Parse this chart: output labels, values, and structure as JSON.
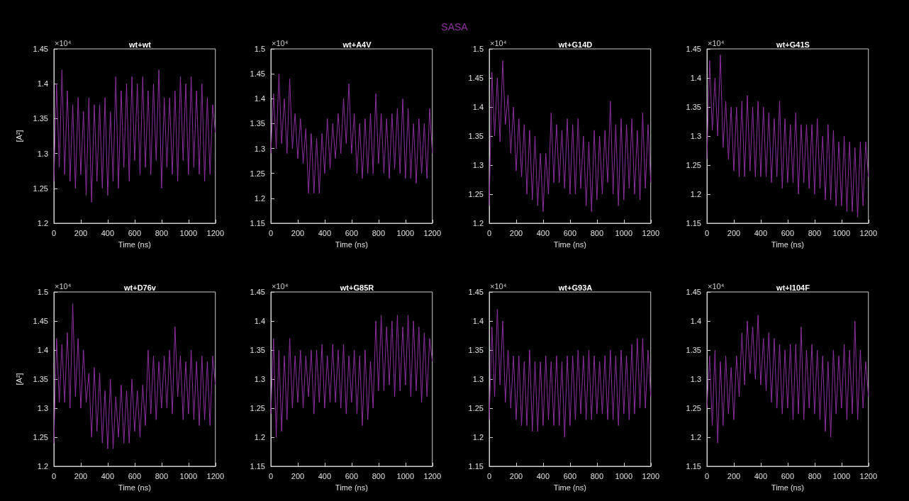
{
  "chart_data": [
    {
      "type": "line",
      "title": "wt+wt",
      "xlabel": "Time (ns)",
      "ylabel": "[A²]",
      "annotations": [
        "×10⁴",
        "SASA"
      ],
      "color": "#8e30a0",
      "x": [
        0,
        20,
        40,
        60,
        80,
        100,
        120,
        140,
        160,
        180,
        200,
        220,
        240,
        260,
        280,
        300,
        320,
        340,
        360,
        380,
        400,
        420,
        440,
        460,
        480,
        500,
        520,
        540,
        560,
        580,
        600,
        620,
        640,
        660,
        680,
        700,
        720,
        740,
        760,
        780,
        800,
        820,
        840,
        860,
        880,
        900,
        920,
        940,
        960,
        980,
        1000,
        1020,
        1040,
        1060,
        1080,
        1100,
        1120,
        1140,
        1160,
        1180,
        1200
      ],
      "values": [
        1.26,
        1.4,
        1.28,
        1.42,
        1.27,
        1.39,
        1.26,
        1.37,
        1.25,
        1.38,
        1.27,
        1.36,
        1.24,
        1.38,
        1.23,
        1.37,
        1.26,
        1.37,
        1.25,
        1.38,
        1.24,
        1.36,
        1.26,
        1.41,
        1.25,
        1.39,
        1.28,
        1.4,
        1.26,
        1.41,
        1.29,
        1.4,
        1.27,
        1.41,
        1.28,
        1.39,
        1.27,
        1.4,
        1.29,
        1.42,
        1.25,
        1.38,
        1.28,
        1.38,
        1.27,
        1.39,
        1.26,
        1.41,
        1.29,
        1.4,
        1.27,
        1.41,
        1.28,
        1.39,
        1.27,
        1.4,
        1.26,
        1.38,
        1.27,
        1.37,
        1.33
      ],
      "xlim": [
        0,
        1200
      ],
      "xticks": [
        0,
        200,
        400,
        600,
        800,
        1000,
        1200
      ],
      "ylim": [
        1.2,
        1.45
      ],
      "yticks": [
        1.2,
        1.25,
        1.3,
        1.35,
        1.4,
        1.45
      ]
    },
    {
      "type": "line",
      "title": "wt+A4V",
      "xlabel": "Time (ns)",
      "annotations": [
        "×10⁴"
      ],
      "color": "#8e30a0",
      "x": [
        0,
        20,
        40,
        60,
        80,
        100,
        120,
        140,
        160,
        180,
        200,
        220,
        240,
        260,
        280,
        300,
        320,
        340,
        360,
        380,
        400,
        420,
        440,
        460,
        480,
        500,
        520,
        540,
        560,
        580,
        600,
        620,
        640,
        660,
        680,
        700,
        720,
        740,
        760,
        780,
        800,
        820,
        840,
        860,
        880,
        900,
        920,
        940,
        960,
        980,
        1000,
        1020,
        1040,
        1060,
        1080,
        1100,
        1120,
        1140,
        1160,
        1180,
        1200
      ],
      "values": [
        1.29,
        1.41,
        1.3,
        1.45,
        1.31,
        1.4,
        1.29,
        1.44,
        1.3,
        1.37,
        1.28,
        1.36,
        1.27,
        1.34,
        1.21,
        1.33,
        1.21,
        1.32,
        1.21,
        1.33,
        1.25,
        1.36,
        1.26,
        1.35,
        1.28,
        1.37,
        1.29,
        1.4,
        1.31,
        1.43,
        1.29,
        1.37,
        1.25,
        1.35,
        1.24,
        1.36,
        1.25,
        1.37,
        1.25,
        1.41,
        1.27,
        1.37,
        1.25,
        1.36,
        1.24,
        1.37,
        1.26,
        1.38,
        1.25,
        1.4,
        1.24,
        1.38,
        1.24,
        1.35,
        1.23,
        1.36,
        1.25,
        1.35,
        1.24,
        1.38,
        1.29
      ],
      "xlim": [
        0,
        1200
      ],
      "xticks": [
        0,
        200,
        400,
        600,
        800,
        1000,
        1200
      ],
      "ylim": [
        1.15,
        1.5
      ],
      "yticks": [
        1.15,
        1.2,
        1.25,
        1.3,
        1.35,
        1.4,
        1.45,
        1.5
      ]
    },
    {
      "type": "line",
      "title": "wt+G14D",
      "xlabel": "Time (ns)",
      "annotations": [
        "×10⁴"
      ],
      "color": "#8e30a0",
      "x": [
        0,
        20,
        40,
        60,
        80,
        100,
        120,
        140,
        160,
        180,
        200,
        220,
        240,
        260,
        280,
        300,
        320,
        340,
        360,
        380,
        400,
        420,
        440,
        460,
        480,
        500,
        520,
        540,
        560,
        580,
        600,
        620,
        640,
        660,
        680,
        700,
        720,
        740,
        760,
        780,
        800,
        820,
        840,
        860,
        880,
        900,
        920,
        940,
        960,
        980,
        1000,
        1020,
        1040,
        1060,
        1080,
        1100,
        1120,
        1140,
        1160,
        1180,
        1200
      ],
      "values": [
        1.23,
        1.46,
        1.35,
        1.45,
        1.34,
        1.48,
        1.37,
        1.42,
        1.32,
        1.4,
        1.29,
        1.38,
        1.28,
        1.37,
        1.25,
        1.36,
        1.24,
        1.35,
        1.23,
        1.32,
        1.22,
        1.32,
        1.25,
        1.39,
        1.27,
        1.37,
        1.27,
        1.36,
        1.26,
        1.38,
        1.25,
        1.37,
        1.25,
        1.38,
        1.26,
        1.35,
        1.23,
        1.34,
        1.22,
        1.36,
        1.24,
        1.35,
        1.25,
        1.36,
        1.27,
        1.41,
        1.25,
        1.37,
        1.23,
        1.38,
        1.24,
        1.37,
        1.26,
        1.38,
        1.25,
        1.36,
        1.24,
        1.39,
        1.26,
        1.37,
        1.27
      ],
      "xlim": [
        0,
        1200
      ],
      "xticks": [
        0,
        200,
        400,
        600,
        800,
        1000,
        1200
      ],
      "ylim": [
        1.2,
        1.5
      ],
      "yticks": [
        1.2,
        1.25,
        1.3,
        1.35,
        1.4,
        1.45,
        1.5
      ]
    },
    {
      "type": "line",
      "title": "wt+G41S",
      "xlabel": "Time (ns)",
      "annotations": [
        "×10⁴"
      ],
      "color": "#8e30a0",
      "x": [
        0,
        20,
        40,
        60,
        80,
        100,
        120,
        140,
        160,
        180,
        200,
        220,
        240,
        260,
        280,
        300,
        320,
        340,
        360,
        380,
        400,
        420,
        440,
        460,
        480,
        500,
        520,
        540,
        560,
        580,
        600,
        620,
        640,
        660,
        680,
        700,
        720,
        740,
        760,
        780,
        800,
        820,
        840,
        860,
        880,
        900,
        920,
        940,
        960,
        980,
        1000,
        1020,
        1040,
        1060,
        1080,
        1100,
        1120,
        1140,
        1160,
        1180,
        1200
      ],
      "values": [
        1.26,
        1.43,
        1.31,
        1.4,
        1.3,
        1.44,
        1.28,
        1.36,
        1.26,
        1.35,
        1.24,
        1.35,
        1.23,
        1.36,
        1.23,
        1.37,
        1.24,
        1.35,
        1.23,
        1.36,
        1.23,
        1.35,
        1.23,
        1.34,
        1.22,
        1.33,
        1.23,
        1.36,
        1.21,
        1.33,
        1.22,
        1.32,
        1.22,
        1.34,
        1.2,
        1.32,
        1.22,
        1.32,
        1.21,
        1.32,
        1.2,
        1.33,
        1.21,
        1.3,
        1.19,
        1.32,
        1.19,
        1.31,
        1.18,
        1.29,
        1.18,
        1.3,
        1.17,
        1.29,
        1.17,
        1.28,
        1.16,
        1.29,
        1.18,
        1.29,
        1.23
      ],
      "xlim": [
        0,
        1200
      ],
      "xticks": [
        0,
        200,
        400,
        600,
        800,
        1000,
        1200
      ],
      "ylim": [
        1.15,
        1.45
      ],
      "yticks": [
        1.15,
        1.2,
        1.25,
        1.3,
        1.35,
        1.4,
        1.45
      ]
    },
    {
      "type": "line",
      "title": "wt+D76v",
      "xlabel": "Time (ns)",
      "ylabel": "[A²]",
      "annotations": [
        "×10⁴"
      ],
      "color": "#8e30a0",
      "x": [
        0,
        20,
        40,
        60,
        80,
        100,
        120,
        140,
        160,
        180,
        200,
        220,
        240,
        260,
        280,
        300,
        320,
        340,
        360,
        380,
        400,
        420,
        440,
        460,
        480,
        500,
        520,
        540,
        560,
        580,
        600,
        620,
        640,
        660,
        680,
        700,
        720,
        740,
        760,
        780,
        800,
        820,
        840,
        860,
        880,
        900,
        920,
        940,
        960,
        980,
        1000,
        1020,
        1040,
        1060,
        1080,
        1100,
        1120,
        1140,
        1160,
        1180,
        1200
      ],
      "values": [
        1.24,
        1.42,
        1.31,
        1.41,
        1.31,
        1.43,
        1.3,
        1.48,
        1.32,
        1.42,
        1.3,
        1.4,
        1.31,
        1.36,
        1.25,
        1.37,
        1.26,
        1.36,
        1.24,
        1.33,
        1.23,
        1.35,
        1.23,
        1.32,
        1.25,
        1.34,
        1.24,
        1.33,
        1.24,
        1.35,
        1.26,
        1.33,
        1.25,
        1.34,
        1.27,
        1.4,
        1.29,
        1.39,
        1.28,
        1.38,
        1.3,
        1.39,
        1.3,
        1.4,
        1.29,
        1.44,
        1.32,
        1.39,
        1.28,
        1.38,
        1.29,
        1.4,
        1.28,
        1.38,
        1.27,
        1.39,
        1.28,
        1.38,
        1.27,
        1.39,
        1.34
      ],
      "xlim": [
        0,
        1200
      ],
      "xticks": [
        0,
        200,
        400,
        600,
        800,
        1000,
        1200
      ],
      "ylim": [
        1.2,
        1.5
      ],
      "yticks": [
        1.2,
        1.25,
        1.3,
        1.35,
        1.4,
        1.45,
        1.5
      ]
    },
    {
      "type": "line",
      "title": "wt+G85R",
      "xlabel": "Time (ns)",
      "annotations": [
        "×10⁴"
      ],
      "color": "#8e30a0",
      "x": [
        0,
        20,
        40,
        60,
        80,
        100,
        120,
        140,
        160,
        180,
        200,
        220,
        240,
        260,
        280,
        300,
        320,
        340,
        360,
        380,
        400,
        420,
        440,
        460,
        480,
        500,
        520,
        540,
        560,
        580,
        600,
        620,
        640,
        660,
        680,
        700,
        720,
        740,
        760,
        780,
        800,
        820,
        840,
        860,
        880,
        900,
        920,
        940,
        960,
        980,
        1000,
        1020,
        1040,
        1060,
        1080,
        1100,
        1120,
        1140,
        1160,
        1180,
        1200
      ],
      "values": [
        1.24,
        1.37,
        1.2,
        1.35,
        1.21,
        1.34,
        1.23,
        1.37,
        1.25,
        1.34,
        1.26,
        1.35,
        1.25,
        1.34,
        1.27,
        1.35,
        1.24,
        1.35,
        1.26,
        1.36,
        1.25,
        1.34,
        1.26,
        1.36,
        1.26,
        1.35,
        1.25,
        1.36,
        1.24,
        1.34,
        1.26,
        1.35,
        1.24,
        1.34,
        1.22,
        1.35,
        1.23,
        1.33,
        1.25,
        1.4,
        1.28,
        1.41,
        1.28,
        1.39,
        1.29,
        1.4,
        1.27,
        1.41,
        1.28,
        1.39,
        1.29,
        1.41,
        1.27,
        1.4,
        1.28,
        1.39,
        1.26,
        1.38,
        1.27,
        1.37,
        1.33
      ],
      "xlim": [
        0,
        1200
      ],
      "xticks": [
        0,
        200,
        400,
        600,
        800,
        1000,
        1200
      ],
      "ylim": [
        1.15,
        1.45
      ],
      "yticks": [
        1.15,
        1.2,
        1.25,
        1.3,
        1.35,
        1.4,
        1.45
      ]
    },
    {
      "type": "line",
      "title": "wt+G93A",
      "xlabel": "Time (ns)",
      "annotations": [
        "×10⁴"
      ],
      "color": "#8e30a0",
      "x": [
        0,
        20,
        40,
        60,
        80,
        100,
        120,
        140,
        160,
        180,
        200,
        220,
        240,
        260,
        280,
        300,
        320,
        340,
        360,
        380,
        400,
        420,
        440,
        460,
        480,
        500,
        520,
        540,
        560,
        580,
        600,
        620,
        640,
        660,
        680,
        700,
        720,
        740,
        760,
        780,
        800,
        820,
        840,
        860,
        880,
        900,
        920,
        940,
        960,
        980,
        1000,
        1020,
        1040,
        1060,
        1080,
        1100,
        1120,
        1140,
        1160,
        1180,
        1200
      ],
      "values": [
        1.23,
        1.39,
        1.27,
        1.42,
        1.29,
        1.4,
        1.26,
        1.35,
        1.25,
        1.34,
        1.23,
        1.34,
        1.22,
        1.33,
        1.22,
        1.35,
        1.21,
        1.33,
        1.21,
        1.33,
        1.22,
        1.34,
        1.23,
        1.33,
        1.22,
        1.34,
        1.22,
        1.33,
        1.2,
        1.34,
        1.22,
        1.34,
        1.23,
        1.35,
        1.24,
        1.34,
        1.23,
        1.35,
        1.23,
        1.34,
        1.24,
        1.33,
        1.24,
        1.34,
        1.23,
        1.35,
        1.23,
        1.34,
        1.22,
        1.35,
        1.24,
        1.34,
        1.23,
        1.36,
        1.24,
        1.37,
        1.25,
        1.37,
        1.25,
        1.35,
        1.27
      ],
      "xlim": [
        0,
        1200
      ],
      "xticks": [
        0,
        200,
        400,
        600,
        800,
        1000,
        1200
      ],
      "ylim": [
        1.15,
        1.45
      ],
      "yticks": [
        1.15,
        1.2,
        1.25,
        1.3,
        1.35,
        1.4,
        1.45
      ]
    },
    {
      "type": "line",
      "title": "wt+I104F",
      "xlabel": "Time (ns)",
      "annotations": [
        "×10⁴"
      ],
      "color": "#8e30a0",
      "x": [
        0,
        20,
        40,
        60,
        80,
        100,
        120,
        140,
        160,
        180,
        200,
        220,
        240,
        260,
        280,
        300,
        320,
        340,
        360,
        380,
        400,
        420,
        440,
        460,
        480,
        500,
        520,
        540,
        560,
        580,
        600,
        620,
        640,
        660,
        680,
        700,
        720,
        740,
        760,
        780,
        800,
        820,
        840,
        860,
        880,
        900,
        920,
        940,
        960,
        980,
        1000,
        1020,
        1040,
        1060,
        1080,
        1100,
        1120,
        1140,
        1160,
        1180,
        1200
      ],
      "values": [
        1.25,
        1.34,
        1.22,
        1.35,
        1.19,
        1.33,
        1.22,
        1.34,
        1.24,
        1.32,
        1.23,
        1.34,
        1.27,
        1.38,
        1.29,
        1.4,
        1.31,
        1.39,
        1.3,
        1.41,
        1.29,
        1.37,
        1.28,
        1.38,
        1.26,
        1.37,
        1.25,
        1.36,
        1.24,
        1.35,
        1.25,
        1.36,
        1.23,
        1.36,
        1.24,
        1.39,
        1.23,
        1.35,
        1.25,
        1.36,
        1.24,
        1.35,
        1.23,
        1.34,
        1.21,
        1.33,
        1.2,
        1.35,
        1.24,
        1.34,
        1.25,
        1.36,
        1.23,
        1.35,
        1.24,
        1.4,
        1.23,
        1.35,
        1.25,
        1.33,
        1.27
      ],
      "xlim": [
        0,
        1200
      ],
      "xticks": [
        0,
        200,
        400,
        600,
        800,
        1000,
        1200
      ],
      "ylim": [
        1.15,
        1.45
      ],
      "yticks": [
        1.15,
        1.2,
        1.25,
        1.3,
        1.35,
        1.4,
        1.45
      ]
    }
  ]
}
